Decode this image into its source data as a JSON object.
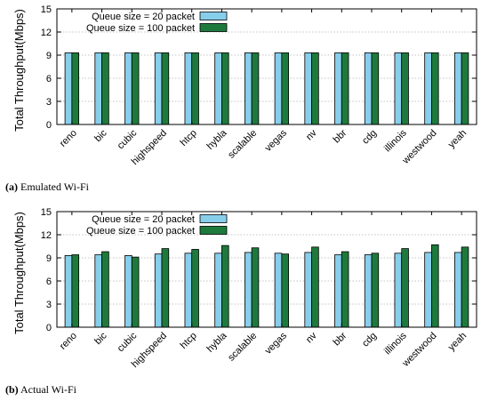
{
  "chart_data": [
    {
      "type": "bar",
      "caption_label": "(a)",
      "caption_text": "Emulated Wi-Fi",
      "ylabel": "Total Throughput(Mbps)",
      "xlabel": "",
      "ylim": [
        0,
        15
      ],
      "yticks": [
        0,
        3,
        6,
        9,
        12,
        15
      ],
      "grid": "horizontal dashed",
      "legend_position": "top-right",
      "categories": [
        "reno",
        "bic",
        "cubic",
        "highspeed",
        "htcp",
        "hybla",
        "scalable",
        "vegas",
        "nv",
        "bbr",
        "cdg",
        "illinois",
        "westwood",
        "yeah"
      ],
      "series": [
        {
          "name": "Queue size = 20 packet",
          "color": "#87ceeb",
          "values": [
            9.3,
            9.3,
            9.3,
            9.3,
            9.3,
            9.3,
            9.3,
            9.3,
            9.3,
            9.3,
            9.3,
            9.3,
            9.3,
            9.3
          ]
        },
        {
          "name": "Queue size = 100 packet",
          "color": "#1e7a3c",
          "values": [
            9.3,
            9.3,
            9.3,
            9.3,
            9.3,
            9.3,
            9.3,
            9.3,
            9.3,
            9.3,
            9.3,
            9.3,
            9.3,
            9.3
          ]
        }
      ]
    },
    {
      "type": "bar",
      "caption_label": "(b)",
      "caption_text": "Actual Wi-Fi",
      "ylabel": "Total Throughput(Mbps)",
      "xlabel": "",
      "ylim": [
        0,
        15
      ],
      "yticks": [
        0,
        3,
        6,
        9,
        12,
        15
      ],
      "grid": "horizontal dashed",
      "legend_position": "top-right",
      "categories": [
        "reno",
        "bic",
        "cubic",
        "highspeed",
        "htcp",
        "hybla",
        "scalable",
        "vegas",
        "nv",
        "bbr",
        "cdg",
        "illinois",
        "westwood",
        "yeah"
      ],
      "series": [
        {
          "name": "Queue size = 20 packet",
          "color": "#87ceeb",
          "values": [
            9.3,
            9.4,
            9.3,
            9.5,
            9.6,
            9.6,
            9.7,
            9.6,
            9.7,
            9.4,
            9.4,
            9.6,
            9.7,
            9.7
          ]
        },
        {
          "name": "Queue size = 100 packet",
          "color": "#1e7a3c",
          "values": [
            9.4,
            9.8,
            9.1,
            10.2,
            10.1,
            10.6,
            10.3,
            9.5,
            10.4,
            9.8,
            9.6,
            10.2,
            10.7,
            10.4
          ]
        }
      ]
    }
  ]
}
